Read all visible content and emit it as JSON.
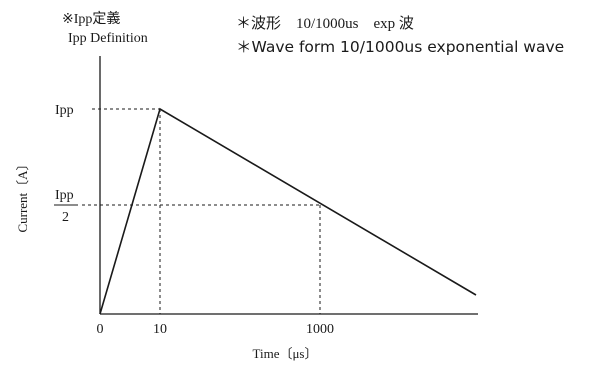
{
  "header": {
    "definition_jp": "※Ipp定義",
    "definition_en": "Ipp Definition",
    "wave_jp": "＊波形　10/1000us　exp 波",
    "wave_en": "＊Wave form 10/1000us exponential wave"
  },
  "axes": {
    "y_label": "Current〔A〕",
    "x_label": "Time〔μs〕"
  },
  "y_ticks": {
    "ipp": "Ipp",
    "half_numerator": "Ipp",
    "half_denominator": "2"
  },
  "x_ticks": {
    "zero": "0",
    "ten": "10",
    "thousand": "1000"
  },
  "colors": {
    "ink": "#1a1a1a",
    "background": "#ffffff"
  }
}
